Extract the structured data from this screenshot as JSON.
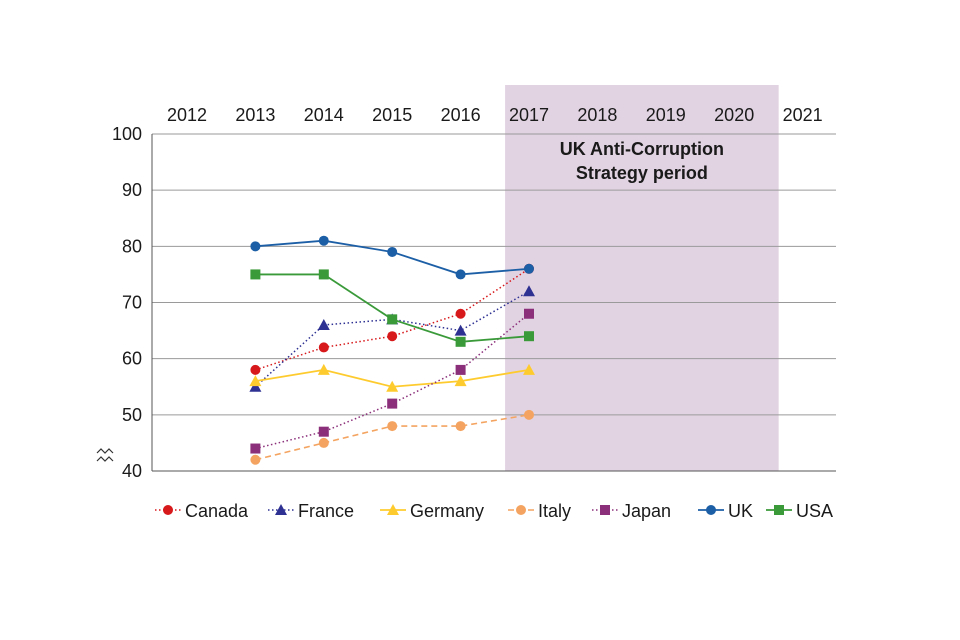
{
  "chart_data": {
    "type": "line",
    "title": "",
    "xlabel": "",
    "ylabel": "",
    "x": [
      2012,
      2013,
      2014,
      2015,
      2016,
      2017,
      2018,
      2019,
      2020,
      2021
    ],
    "x_tick_labels": [
      "2012",
      "2013",
      "2014",
      "2015",
      "2016",
      "2017",
      "2018",
      "2019",
      "2020",
      "2021"
    ],
    "x_axis_position": "top",
    "ylim": [
      40,
      100
    ],
    "y_ticks": [
      40,
      50,
      60,
      70,
      80,
      90,
      100
    ],
    "y_tick_labels": [
      "40",
      "50",
      "60",
      "70",
      "80",
      "90",
      "100"
    ],
    "y_axis_break": true,
    "grid": true,
    "legend_position": "bottom",
    "shaded_region": {
      "x_start": 2016.65,
      "x_end": 2020.65,
      "color": "#e2d3e3",
      "label_lines": [
        "UK Anti-Corruption",
        "Strategy period"
      ]
    },
    "series": [
      {
        "name": "Canada",
        "color": "#d7191c",
        "marker": "circle",
        "line": "dotted",
        "x": [
          2013,
          2014,
          2015,
          2016,
          2017
        ],
        "values": [
          58,
          62,
          64,
          68,
          76
        ]
      },
      {
        "name": "France",
        "color": "#2e3192",
        "marker": "triangle",
        "line": "dotted",
        "x": [
          2013,
          2014,
          2015,
          2016,
          2017
        ],
        "values": [
          55,
          66,
          67,
          65,
          72
        ]
      },
      {
        "name": "Germany",
        "color": "#fecb2f",
        "marker": "triangle",
        "line": "solid",
        "x": [
          2013,
          2014,
          2015,
          2016,
          2017
        ],
        "values": [
          56,
          58,
          55,
          56,
          58
        ]
      },
      {
        "name": "Italy",
        "color": "#f4a460",
        "marker": "circle",
        "line": "dashed",
        "x": [
          2013,
          2014,
          2015,
          2016,
          2017
        ],
        "values": [
          42,
          45,
          48,
          48,
          50
        ]
      },
      {
        "name": "Japan",
        "color": "#8b2f7a",
        "marker": "square",
        "line": "dotted",
        "x": [
          2013,
          2014,
          2015,
          2016,
          2017
        ],
        "values": [
          44,
          47,
          52,
          58,
          68
        ]
      },
      {
        "name": "UK",
        "color": "#1d5fa6",
        "marker": "circle",
        "line": "solid",
        "x": [
          2013,
          2014,
          2015,
          2016,
          2017
        ],
        "values": [
          80,
          81,
          79,
          75,
          76
        ]
      },
      {
        "name": "USA",
        "color": "#3a9a3a",
        "marker": "square",
        "line": "solid",
        "x": [
          2013,
          2014,
          2015,
          2016,
          2017
        ],
        "values": [
          75,
          75,
          67,
          63,
          64
        ]
      }
    ]
  }
}
